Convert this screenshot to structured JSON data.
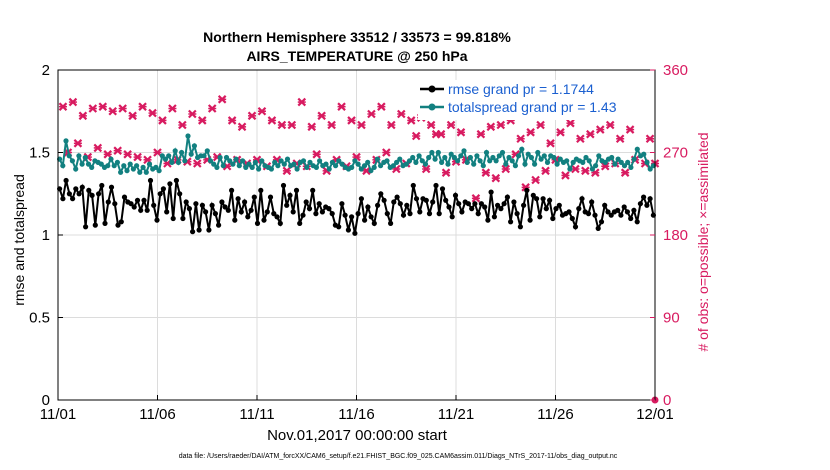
{
  "chart_data": {
    "type": "line",
    "title": "Northern Hemisphere 33512 / 33573 = 99.818%",
    "subtitle": "AIRS_TEMPERATURE @ 250 hPa",
    "xlabel": "Nov.01,2017 00:00:00 start",
    "ylabel_left": "rmse and totalspread",
    "ylabel_right": "# of obs: o=possible; ×=assimilated",
    "footnote": "data file: /Users/raeder/DAI/ATM_forcXX/CAM6_setup/f.e21.FHIST_BGC.f09_025.CAM6assim.011/Diags_NTrS_2017-11/obs_diag_output.nc",
    "x_ticks": [
      {
        "day": 0,
        "label": "11/01"
      },
      {
        "day": 5,
        "label": "11/06"
      },
      {
        "day": 10,
        "label": "11/11"
      },
      {
        "day": 15,
        "label": "11/16"
      },
      {
        "day": 20,
        "label": "11/21"
      },
      {
        "day": 25,
        "label": "11/26"
      },
      {
        "day": 30,
        "label": "12/01"
      }
    ],
    "xlim": [
      0,
      30
    ],
    "ylim_left": [
      0,
      2
    ],
    "yticks_left": [
      "0",
      "0.5",
      "1",
      "1.5",
      "2"
    ],
    "ylim_right": [
      0,
      360
    ],
    "yticks_right": [
      "0",
      "90",
      "180",
      "270",
      "360"
    ],
    "grid": true,
    "legend_position": "top-right",
    "legend": [
      {
        "label": "rmse grand pr = 1.1744",
        "color": "#000000"
      },
      {
        "label": "totalspread grand pr = 1.43",
        "color": "#128080"
      }
    ],
    "series": [
      {
        "name": "rmse grand pr = 1.1744",
        "axis": "left",
        "color": "#000000",
        "values": [
          1.28,
          1.22,
          1.33,
          1.25,
          1.22,
          1.28,
          1.25,
          1.29,
          1.05,
          1.27,
          1.24,
          1.06,
          1.25,
          1.3,
          1.07,
          1.2,
          1.29,
          1.19,
          1.06,
          1.08,
          1.23,
          1.2,
          1.19,
          1.17,
          1.21,
          1.15,
          1.21,
          1.15,
          1.33,
          1.18,
          1.09,
          1.25,
          1.28,
          1.14,
          1.31,
          1.1,
          1.33,
          1.25,
          1.1,
          1.2,
          1.16,
          1.02,
          1.19,
          1.03,
          1.18,
          1.14,
          1.03,
          1.18,
          1.13,
          1.06,
          1.2,
          1.17,
          1.15,
          1.27,
          1.09,
          1.22,
          1.14,
          1.2,
          1.11,
          1.15,
          1.23,
          1.07,
          1.27,
          1.09,
          1.14,
          1.23,
          1.13,
          1.11,
          1.07,
          1.3,
          1.18,
          1.24,
          1.14,
          1.27,
          1.07,
          1.12,
          1.2,
          1.16,
          1.27,
          1.13,
          1.19,
          1.14,
          1.17,
          1.16,
          1.13,
          1.06,
          1.05,
          1.19,
          1.12,
          1.03,
          1.11,
          1.01,
          1.13,
          1.22,
          1.09,
          1.17,
          1.11,
          1.07,
          1.18,
          1.25,
          1.21,
          1.13,
          1.07,
          1.2,
          1.23,
          1.19,
          1.12,
          1.18,
          1.13,
          1.3,
          1.22,
          1.14,
          1.22,
          1.21,
          1.13,
          1.2,
          1.3,
          1.13,
          1.28,
          1.21,
          1.17,
          1.11,
          1.24,
          1.19,
          1.14,
          1.2,
          1.19,
          1.16,
          1.19,
          1.13,
          1.19,
          1.17,
          1.09,
          1.26,
          1.11,
          1.18,
          1.16,
          1.19,
          1.23,
          1.08,
          1.2,
          1.13,
          1.05,
          1.18,
          1.27,
          1.09,
          1.24,
          1.22,
          1.11,
          1.22,
          1.16,
          1.21,
          1.1,
          1.16,
          1.18,
          1.12,
          1.13,
          1.14,
          1.1,
          1.05,
          1.16,
          1.22,
          1.14,
          1.13,
          1.2,
          1.12,
          1.04,
          1.08,
          1.18,
          1.14,
          1.12,
          1.14,
          1.15,
          1.12,
          1.17,
          1.14,
          1.1,
          1.15,
          1.08,
          1.19,
          1.23,
          1.18,
          1.22,
          1.12
        ]
      },
      {
        "name": "totalspread grand pr = 1.43",
        "axis": "left",
        "color": "#128080",
        "values": [
          1.46,
          1.42,
          1.57,
          1.48,
          1.45,
          1.4,
          1.48,
          1.43,
          1.47,
          1.43,
          1.41,
          1.45,
          1.44,
          1.43,
          1.41,
          1.42,
          1.46,
          1.42,
          1.44,
          1.38,
          1.42,
          1.39,
          1.43,
          1.4,
          1.42,
          1.38,
          1.41,
          1.38,
          1.43,
          1.4,
          1.41,
          1.39,
          1.48,
          1.46,
          1.48,
          1.44,
          1.51,
          1.44,
          1.5,
          1.45,
          1.6,
          1.49,
          1.54,
          1.47,
          1.48,
          1.48,
          1.51,
          1.45,
          1.43,
          1.41,
          1.47,
          1.42,
          1.47,
          1.45,
          1.43,
          1.46,
          1.42,
          1.45,
          1.41,
          1.43,
          1.41,
          1.44,
          1.4,
          1.45,
          1.42,
          1.41,
          1.4,
          1.44,
          1.42,
          1.45,
          1.43,
          1.46,
          1.42,
          1.43,
          1.4,
          1.44,
          1.45,
          1.41,
          1.44,
          1.42,
          1.41,
          1.45,
          1.42,
          1.43,
          1.4,
          1.44,
          1.42,
          1.45,
          1.43,
          1.41,
          1.4,
          1.41,
          1.45,
          1.43,
          1.4,
          1.42,
          1.44,
          1.39,
          1.41,
          1.46,
          1.42,
          1.44,
          1.45,
          1.41,
          1.42,
          1.44,
          1.46,
          1.42,
          1.43,
          1.45,
          1.47,
          1.44,
          1.48,
          1.45,
          1.43,
          1.47,
          1.5,
          1.46,
          1.5,
          1.44,
          1.47,
          1.43,
          1.49,
          1.47,
          1.45,
          1.48,
          1.51,
          1.44,
          1.47,
          1.43,
          1.48,
          1.45,
          1.42,
          1.5,
          1.45,
          1.47,
          1.45,
          1.48,
          1.5,
          1.43,
          1.47,
          1.45,
          1.42,
          1.48,
          1.52,
          1.43,
          1.49,
          1.47,
          1.43,
          1.5,
          1.46,
          1.48,
          1.44,
          1.48,
          1.47,
          1.43,
          1.46,
          1.44,
          1.45,
          1.4,
          1.44,
          1.46,
          1.45,
          1.44,
          1.47,
          1.45,
          1.4,
          1.42,
          1.48,
          1.45,
          1.44,
          1.46,
          1.47,
          1.43,
          1.46,
          1.44,
          1.42,
          1.44,
          1.41,
          1.46,
          1.52,
          1.48,
          1.49,
          1.44,
          1.4,
          1.42
        ]
      },
      {
        "name": "# of obs",
        "axis": "right",
        "color": "#d81b60",
        "x": [
          0.25,
          0.75,
          1.25,
          1.75,
          2.25,
          2.75,
          3.25,
          3.75,
          4.25,
          4.75,
          5.25,
          5.75,
          6.25,
          6.75,
          7.25,
          7.75,
          8.25,
          8.75,
          9.25,
          9.75,
          10.25,
          10.75,
          11.25,
          11.75,
          12.25,
          12.75,
          13.25,
          13.75,
          14.25,
          14.75,
          15.25,
          15.75,
          16.25,
          16.75,
          17.25,
          17.75,
          18.25,
          18.75,
          19.25,
          19.75,
          20.25,
          20.75,
          21.25,
          21.75,
          22.25,
          22.75,
          23.25,
          23.75,
          24.25,
          24.75,
          25.25,
          25.75,
          26.25,
          26.75,
          27.25,
          27.75,
          28.25,
          28.75,
          29.25,
          29.75,
          0.5,
          1.0,
          1.5,
          2.0,
          2.5,
          3.0,
          3.5,
          4.0,
          4.5,
          5.0,
          5.5,
          6.0,
          6.5,
          7.0,
          7.5,
          8.0,
          8.5,
          9.0,
          9.5,
          10.0,
          10.5,
          11.0,
          11.5,
          12.0,
          12.5,
          13.0,
          13.5,
          14.0,
          14.5,
          15.0,
          15.5,
          16.0,
          16.5,
          17.0,
          17.5,
          18.0,
          18.5,
          19.0,
          19.5,
          20.0,
          20.5,
          21.0,
          21.5,
          22.0,
          22.5,
          23.0,
          23.5,
          24.0,
          24.5,
          25.0,
          25.5,
          26.0,
          26.5,
          27.0,
          27.5,
          28.0,
          28.5,
          29.0,
          29.5,
          30.0
        ],
        "values": [
          320,
          325,
          310,
          318,
          320,
          315,
          318,
          310,
          320,
          313,
          305,
          318,
          300,
          312,
          305,
          318,
          328,
          305,
          298,
          310,
          315,
          305,
          300,
          300,
          325,
          298,
          310,
          300,
          320,
          305,
          300,
          312,
          320,
          300,
          312,
          305,
          308,
          300,
          290,
          300,
          292,
          310,
          290,
          298,
          300,
          305,
          285,
          292,
          300,
          280,
          292,
          302,
          285,
          290,
          295,
          300,
          285,
          295,
          315,
          285,
          270,
          280,
          265,
          275,
          268,
          272,
          268,
          265,
          262,
          270,
          258,
          262,
          260,
          258,
          262,
          265,
          255,
          262,
          258,
          262,
          255,
          262,
          250,
          258,
          255,
          268,
          250,
          262,
          255,
          265,
          250,
          262,
          270,
          252,
          258,
          288,
          252,
          290,
          248,
          260,
          262,
          220,
          248,
          242,
          252,
          268,
          232,
          240,
          250,
          262,
          245,
          252,
          250,
          248,
          255,
          258,
          248,
          262,
          258,
          258
        ]
      }
    ]
  }
}
